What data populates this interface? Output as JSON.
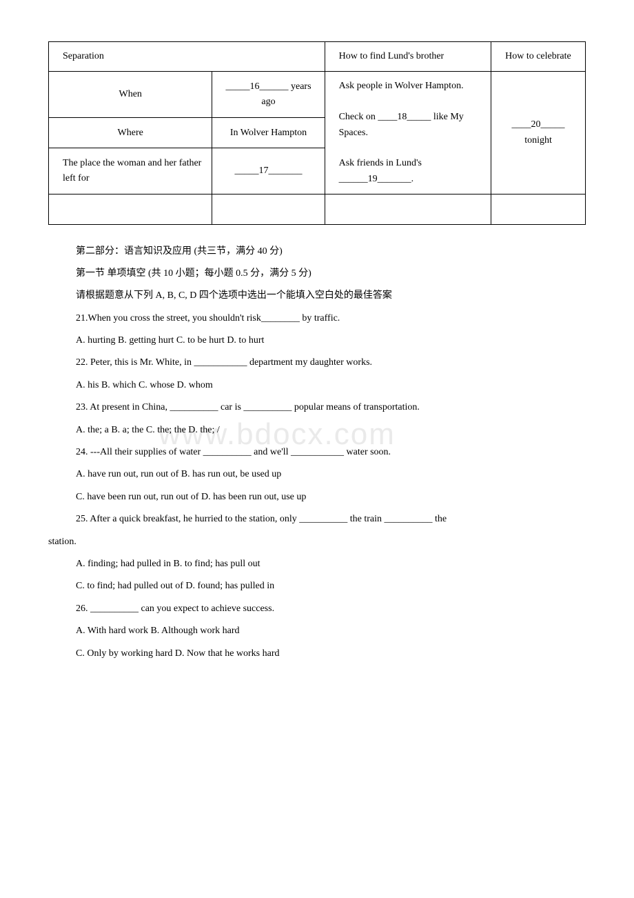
{
  "watermark": "www.bdocx.com",
  "table": {
    "header": {
      "col1": "Separation",
      "col2": "How to find Lund's brother",
      "col3": "How to celebrate"
    },
    "rows": {
      "r1_label": "When",
      "r1_value": "_____16______ years ago",
      "r2_label": "Where",
      "r2_value": "In Wolver Hampton",
      "r3_label": "The place the woman and her father left for",
      "r3_value": "_____17_______",
      "howto": "Ask people in Wolver Hampton.\n\nCheck on ____18_____ like My Spaces.\n\nAsk friends in Lund's ______19_______.",
      "celebrate": "____20_____ tonight"
    }
  },
  "sections": {
    "part2_title": "第二部分：语言知识及应用 (共三节，满分 40 分)",
    "section1_title": "第一节 单项填空 (共 10 小题；每小题 0.5 分，满分 5 分)",
    "section1_instr": "请根据题意从下列 A, B, C, D 四个选项中选出一个能填入空白处的最佳答案"
  },
  "questions": {
    "q21_text": "21.When you cross the street, you shouldn't risk________ by traffic.",
    "q21_opts": "A. hurting   B. getting hurt  C. to be hurt   D. to hurt",
    "q22_text": "22. Peter, this is Mr. White, in ___________ department my daughter works.",
    "q22_opts": " A. his    B. which   C. whose    D. whom",
    "q23_text": "23. At present in China, __________ car is __________ popular means of transportation.",
    "q23_opts": " A. the; a    B. a; the   C. the; the   D. the; /",
    "q24_text": "24. ---All their supplies of water __________ and we'll  ___________ water soon.",
    "q24_opts1": "A. have run out, run out of    B. has run out, be used up",
    "q24_opts2": "C. have been run out, run out of  D. has been run out, use up",
    "q25_text": "25. After a quick breakfast, he hurried to the station, only __________ the train __________ the",
    "q25_cont": " station.",
    "q25_opts1": "A. finding; had pulled in     B. to find; has pull out",
    "q25_opts2": "C. to find; had pulled out of   D. found; has pulled in",
    "q26_text": "26. __________ can you expect to achieve success.",
    "q26_opts1": "A. With hard work     B. Although work hard",
    "q26_opts2": "C. Only by working hard   D. Now that he works hard"
  }
}
